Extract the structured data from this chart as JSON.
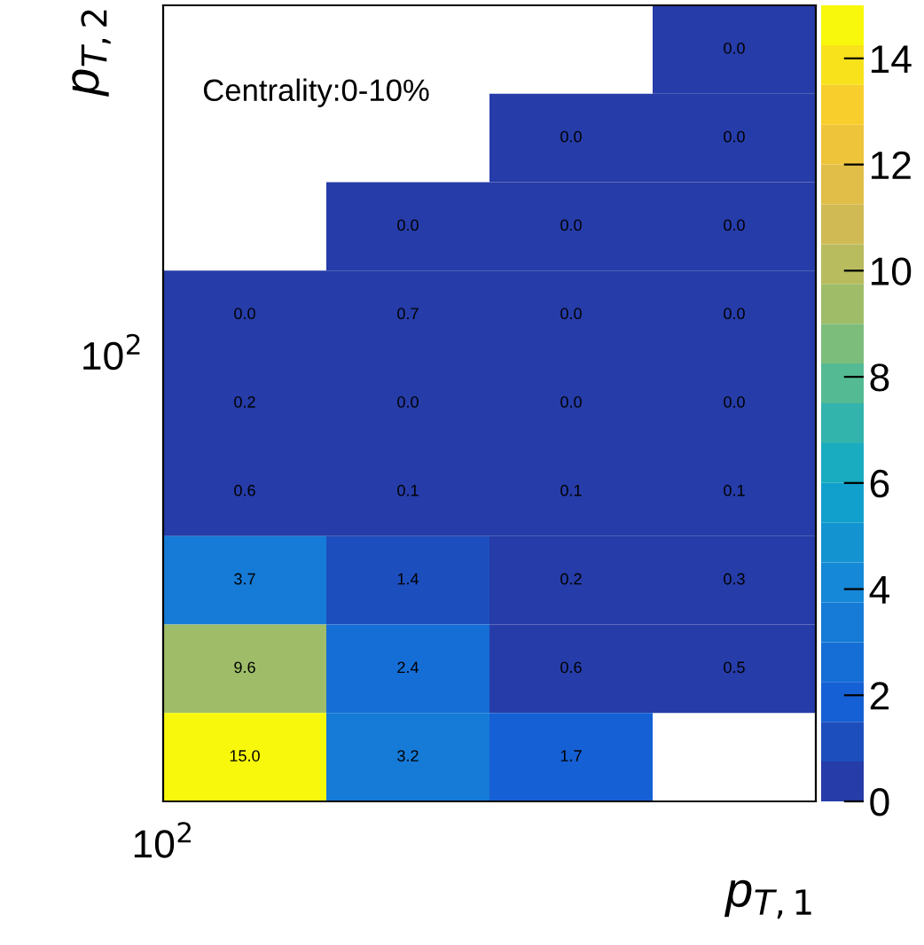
{
  "chart_data": {
    "type": "heatmap",
    "xlabel": "p$_{T,1}$",
    "ylabel": "p$_{T,2}$",
    "annotations": [
      "Centrality:0-10%",
      "10$^{2}$",
      "10$^{2}$"
    ],
    "categories": [
      null,
      null,
      null,
      null
    ],
    "y_categories": [
      null,
      null,
      null,
      null,
      null,
      null,
      null,
      null,
      null
    ],
    "cells": [
      [
        null,
        null,
        null,
        0.0
      ],
      [
        null,
        null,
        0.0,
        0.0
      ],
      [
        null,
        0.0,
        0.0,
        0.0
      ],
      [
        0.0,
        0.7,
        0.0,
        0.0
      ],
      [
        0.2,
        0.0,
        0.0,
        0.0
      ],
      [
        0.6,
        0.1,
        0.1,
        0.1
      ],
      [
        3.7,
        1.4,
        0.2,
        0.3
      ],
      [
        9.6,
        2.4,
        0.6,
        0.5
      ],
      [
        15.0,
        3.2,
        1.7,
        null
      ]
    ],
    "cell_labels": [
      [
        null,
        null,
        null,
        "0.0"
      ],
      [
        null,
        null,
        "0.0",
        "0.0"
      ],
      [
        null,
        "0.0",
        "0.0",
        "0.0"
      ],
      [
        "0.0",
        "0.7",
        "0.0",
        "0.0"
      ],
      [
        "0.2",
        "0.0",
        "0.0",
        "0.0"
      ],
      [
        "0.6",
        "0.1",
        "0.1",
        "0.1"
      ],
      [
        "3.7",
        "1.4",
        "0.2",
        "0.3"
      ],
      [
        "9.6",
        "2.4",
        "0.6",
        "0.5"
      ],
      [
        "15.0",
        "3.2",
        "1.7",
        null
      ]
    ],
    "clim": [
      0,
      15
    ],
    "cticks": [
      0,
      2,
      4,
      6,
      8,
      10,
      12,
      14
    ]
  }
}
